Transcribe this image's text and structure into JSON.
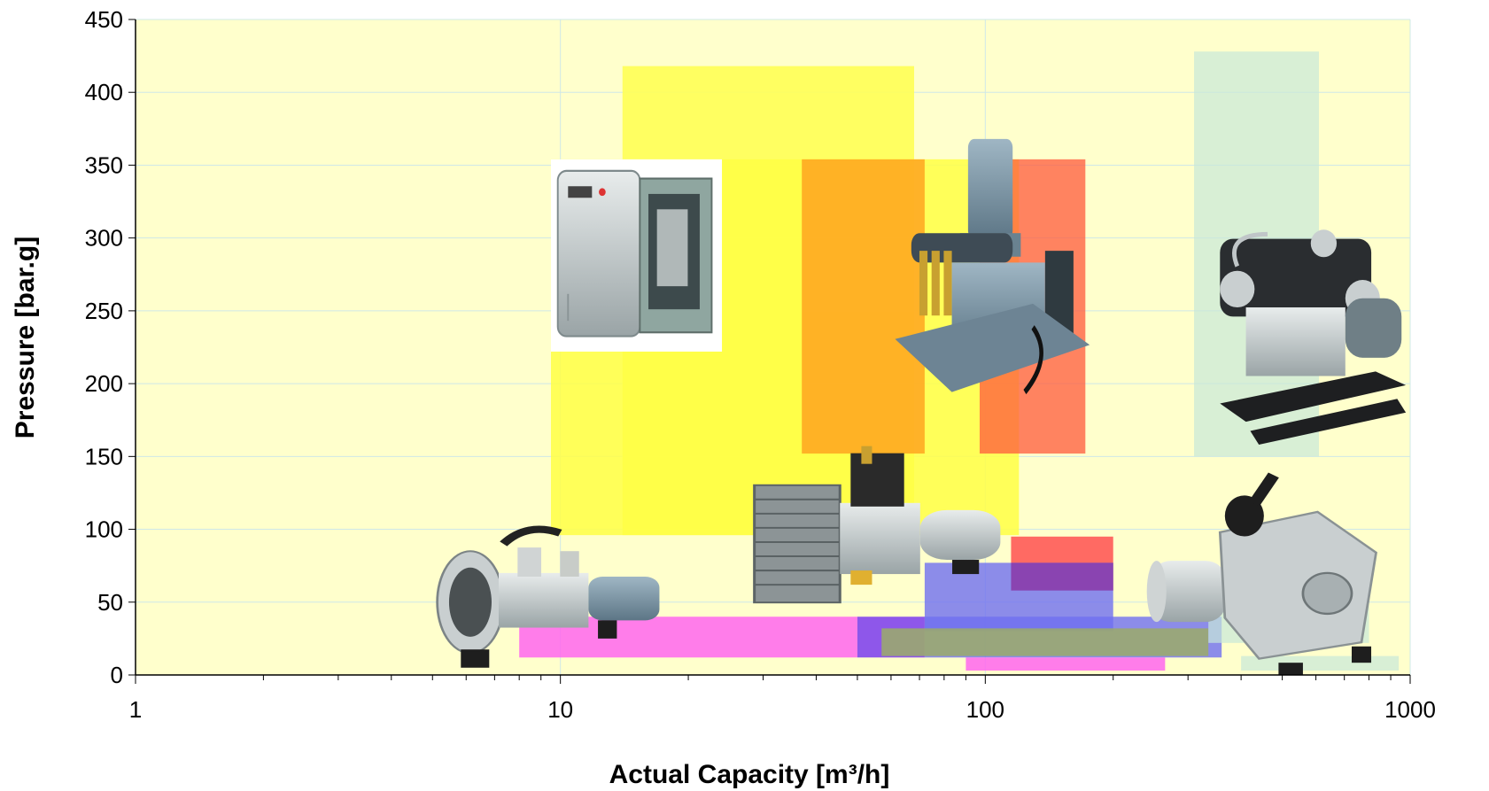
{
  "chart_data": {
    "type": "area",
    "title": "",
    "xlabel": "Actual Capacity [m³/h]",
    "ylabel": "Pressure [bar.g]",
    "x_scale": "log",
    "xlim": [
      1,
      1000
    ],
    "ylim": [
      0,
      450
    ],
    "x_ticks": [
      1,
      10,
      100,
      1000
    ],
    "y_ticks": [
      0,
      50,
      100,
      150,
      200,
      250,
      300,
      350,
      400,
      450
    ],
    "grid": true,
    "legend": "none",
    "plot_background": "#ffffcc",
    "regions": [
      {
        "x": [
          14,
          68
        ],
        "y": [
          96,
          418
        ],
        "color": "#ffff55",
        "opacity": 0.9
      },
      {
        "x": [
          9.5,
          120
        ],
        "y": [
          96,
          354
        ],
        "color": "#ffff44",
        "opacity": 0.85
      },
      {
        "x": [
          37,
          72
        ],
        "y": [
          152,
          354
        ],
        "color": "#ffa520",
        "opacity": 0.85
      },
      {
        "x": [
          97,
          172
        ],
        "y": [
          152,
          354
        ],
        "color": "#ff5a3c",
        "opacity": 0.75
      },
      {
        "x": [
          310,
          610
        ],
        "y": [
          150,
          428
        ],
        "color": "#c8e8d8",
        "opacity": 0.7
      },
      {
        "x": [
          115,
          200
        ],
        "y": [
          58,
          95
        ],
        "color": "#ff5050",
        "opacity": 0.85
      },
      {
        "x": [
          72,
          200
        ],
        "y": [
          30,
          77
        ],
        "color": "#6f6ff0",
        "opacity": 0.8
      },
      {
        "x": [
          115,
          200
        ],
        "y": [
          58,
          77
        ],
        "color": "#8a3aa8",
        "opacity": 0.8
      },
      {
        "x": [
          72,
          360
        ],
        "y": [
          12,
          40
        ],
        "color": "#6f6ff0",
        "opacity": 0.8
      },
      {
        "x": [
          8,
          50
        ],
        "y": [
          12,
          40
        ],
        "color": "#ff66ee",
        "opacity": 0.85
      },
      {
        "x": [
          50,
          72
        ],
        "y": [
          12,
          40
        ],
        "color": "#7a3aee",
        "opacity": 0.85
      },
      {
        "x": [
          90,
          265
        ],
        "y": [
          3,
          12
        ],
        "color": "#ff66ee",
        "opacity": 0.85
      },
      {
        "x": [
          57,
          335
        ],
        "y": [
          13,
          32
        ],
        "color": "#9aa870",
        "opacity": 0.9
      },
      {
        "x": [
          335,
          800
        ],
        "y": [
          22,
          50
        ],
        "color": "#c8e8d8",
        "opacity": 0.7
      },
      {
        "x": [
          400,
          940
        ],
        "y": [
          3,
          13
        ],
        "color": "#c8e8d8",
        "opacity": 0.7
      }
    ],
    "products": [
      {
        "icon": "cabinet-compressor-icon",
        "x": [
          9.5,
          24
        ],
        "y": [
          222,
          354
        ]
      },
      {
        "icon": "motor-compressor-with-filters-icon",
        "x": [
          60,
          180
        ],
        "y": [
          170,
          372
        ]
      },
      {
        "icon": "large-reciprocating-compressor-icon",
        "x": [
          310,
          1000
        ],
        "y": [
          155,
          312
        ]
      },
      {
        "icon": "small-air-compressor-icon",
        "x": [
          5,
          18
        ],
        "y": [
          0,
          125
        ]
      },
      {
        "icon": "radiator-cooled-compressor-icon",
        "x": [
          27,
          115
        ],
        "y": [
          40,
          162
        ]
      },
      {
        "icon": "medium-reciprocating-compressor-icon",
        "x": [
          240,
          900
        ],
        "y": [
          0,
          140
        ]
      }
    ]
  }
}
